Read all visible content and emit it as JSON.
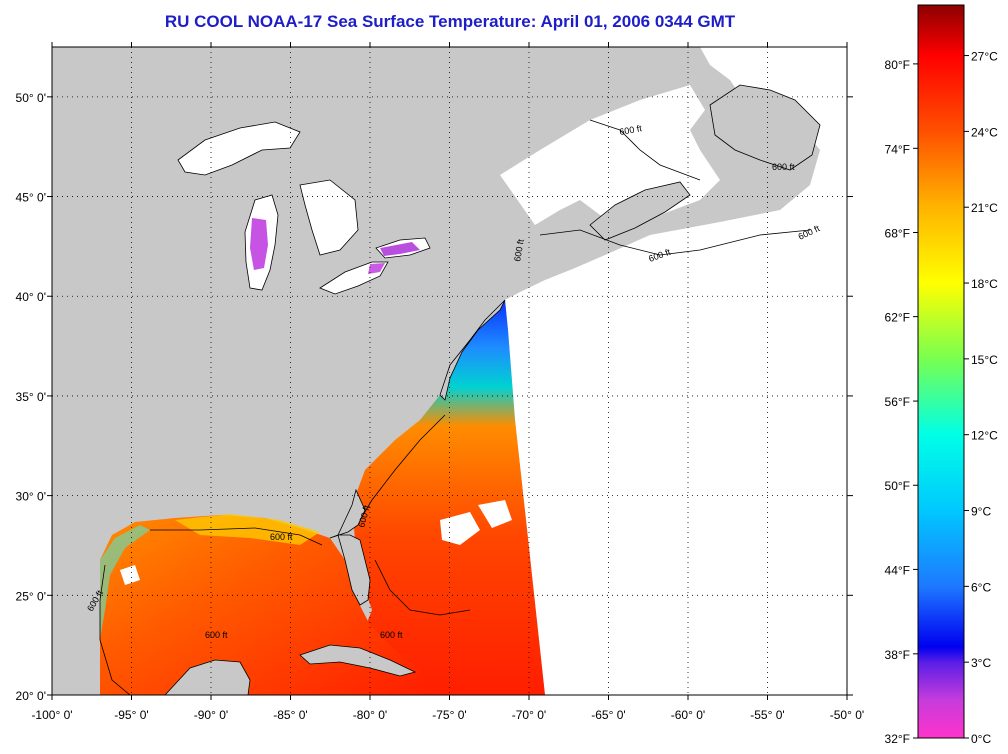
{
  "title": "RU COOL  NOAA-17  Sea Surface Temperature:  April 01, 2006 0344 GMT",
  "map": {
    "lon_range": [
      -100,
      -50
    ],
    "lat_range": [
      20,
      52.5
    ],
    "lon_ticks": [
      {
        "value": -100,
        "label": "-100° 0'"
      },
      {
        "value": -95,
        "label": "-95° 0'"
      },
      {
        "value": -90,
        "label": "-90° 0'"
      },
      {
        "value": -85,
        "label": "-85° 0'"
      },
      {
        "value": -80,
        "label": "-80° 0'"
      },
      {
        "value": -75,
        "label": "-75° 0'"
      },
      {
        "value": -70,
        "label": "-70° 0'"
      },
      {
        "value": -65,
        "label": "-65° 0'"
      },
      {
        "value": -60,
        "label": "-60° 0'"
      },
      {
        "value": -55,
        "label": "-55° 0'"
      },
      {
        "value": -50,
        "label": "-50° 0'"
      }
    ],
    "lat_ticks": [
      {
        "value": 20,
        "label": "20° 0'"
      },
      {
        "value": 25,
        "label": "25° 0'"
      },
      {
        "value": 30,
        "label": "30° 0'"
      },
      {
        "value": 35,
        "label": "35° 0'"
      },
      {
        "value": 40,
        "label": "40° 0'"
      },
      {
        "value": 45,
        "label": "45° 0'"
      },
      {
        "value": 50,
        "label": "50° 0'"
      }
    ],
    "contour_label": "600 ft",
    "colors": {
      "land": "#c8c8c8",
      "no_data": "#ffffff",
      "coast": "#000000",
      "grid": "#000000"
    }
  },
  "colorbar": {
    "range_c": [
      0,
      29
    ],
    "fahrenheit_ticks": [
      {
        "value_c": 0,
        "label": "32°F"
      },
      {
        "value_c": 3.33,
        "label": "38°F"
      },
      {
        "value_c": 6.67,
        "label": "44°F"
      },
      {
        "value_c": 10,
        "label": "50°F"
      },
      {
        "value_c": 13.33,
        "label": "56°F"
      },
      {
        "value_c": 16.67,
        "label": "62°F"
      },
      {
        "value_c": 20,
        "label": "68°F"
      },
      {
        "value_c": 23.33,
        "label": "74°F"
      },
      {
        "value_c": 26.67,
        "label": "80°F"
      }
    ],
    "celsius_ticks": [
      {
        "value_c": 0,
        "label": "0°C"
      },
      {
        "value_c": 3,
        "label": "3°C"
      },
      {
        "value_c": 6,
        "label": "6°C"
      },
      {
        "value_c": 9,
        "label": "9°C"
      },
      {
        "value_c": 12,
        "label": "12°C"
      },
      {
        "value_c": 15,
        "label": "15°C"
      },
      {
        "value_c": 18,
        "label": "18°C"
      },
      {
        "value_c": 21,
        "label": "21°C"
      },
      {
        "value_c": 24,
        "label": "24°C"
      },
      {
        "value_c": 27,
        "label": "27°C"
      }
    ],
    "stops": [
      {
        "value_c": 0,
        "color": "#ff33cc"
      },
      {
        "value_c": 1.5,
        "color": "#c63cdc"
      },
      {
        "value_c": 3,
        "color": "#5a1ee6"
      },
      {
        "value_c": 3.6,
        "color": "#0000f0"
      },
      {
        "value_c": 6,
        "color": "#1e78ff"
      },
      {
        "value_c": 9,
        "color": "#00c8ff"
      },
      {
        "value_c": 12,
        "color": "#00ffe6"
      },
      {
        "value_c": 15,
        "color": "#78ff50"
      },
      {
        "value_c": 18,
        "color": "#ffff00"
      },
      {
        "value_c": 21,
        "color": "#ffb400"
      },
      {
        "value_c": 24,
        "color": "#ff5000"
      },
      {
        "value_c": 27,
        "color": "#ff0000"
      },
      {
        "value_c": 29,
        "color": "#8c0000"
      }
    ]
  }
}
